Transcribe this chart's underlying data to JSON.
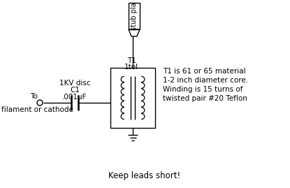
{
  "bg_color": "#ffffff",
  "bottom_text": "Keep leads short!",
  "note_lines": [
    "T1 is 61 or 65 material",
    "1-2 inch diameter core.",
    "Winding is 15 turns of",
    "twisted pair #20 Teflon"
  ],
  "stub_text": "stub pla",
  "t1_label1": "T1",
  "t1_label2": "1tol",
  "cap_label1": "1KV disc",
  "cap_label2": "C1",
  "cap_label3": ".001uF",
  "to_label": "To",
  "filament_label": "filament or cathode",
  "font_size": 7.5,
  "mono_font": "Courier New"
}
